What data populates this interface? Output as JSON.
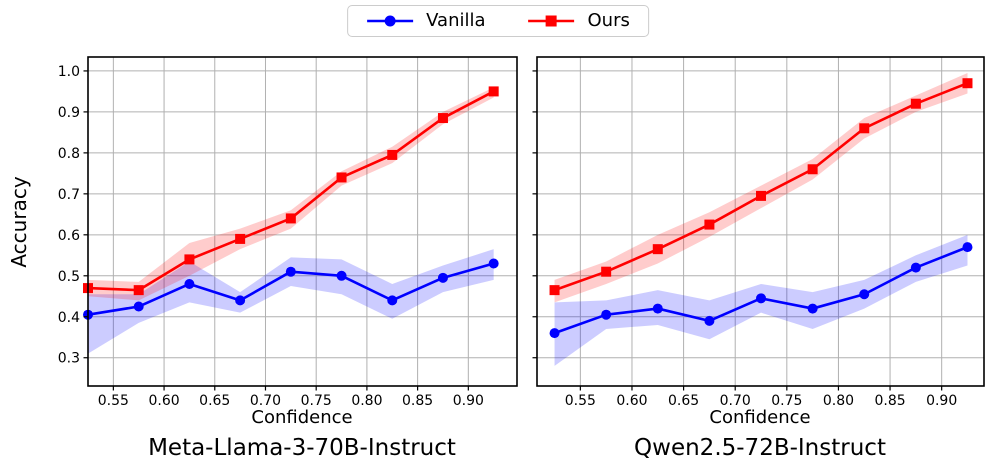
{
  "legend": {
    "items": [
      {
        "label": "Vanilla",
        "color": "#0000ff",
        "marker": "circle"
      },
      {
        "label": "Ours",
        "color": "#ff0000",
        "marker": "square"
      }
    ]
  },
  "colors": {
    "vanilla": "#0000ff",
    "ours": "#ff0000",
    "grid": "#b0b0b0",
    "spine": "#000000",
    "band_opacity": 0.2,
    "background": "#ffffff"
  },
  "chart_data": [
    {
      "type": "line",
      "title": "Meta-Llama-3-70B-Instruct",
      "xlabel": "Confidence",
      "ylabel": "Accuracy",
      "grid": true,
      "legend_position": "top-center",
      "x": [
        0.525,
        0.575,
        0.625,
        0.675,
        0.725,
        0.775,
        0.825,
        0.875,
        0.925
      ],
      "xticks": [
        0.55,
        0.6,
        0.65,
        0.7,
        0.75,
        0.8,
        0.85,
        0.9
      ],
      "xtick_labels": [
        "0.55",
        "0.60",
        "0.65",
        "0.70",
        "0.75",
        "0.80",
        "0.85",
        "0.90"
      ],
      "yticks": [
        0.3,
        0.4,
        0.5,
        0.6,
        0.7,
        0.8,
        0.9,
        1.0
      ],
      "ytick_labels": [
        "0.3",
        "0.4",
        "0.5",
        "0.6",
        "0.7",
        "0.8",
        "0.9",
        "1.0"
      ],
      "xlim": [
        0.525,
        0.948
      ],
      "ylim": [
        0.231,
        1.034
      ],
      "series": [
        {
          "name": "Vanilla",
          "color": "#0000ff",
          "marker": "circle",
          "values": [
            0.405,
            0.425,
            0.48,
            0.44,
            0.51,
            0.5,
            0.44,
            0.495,
            0.53
          ],
          "band_upper": [
            0.455,
            0.455,
            0.535,
            0.46,
            0.545,
            0.54,
            0.48,
            0.525,
            0.565
          ],
          "band_lower": [
            0.31,
            0.385,
            0.435,
            0.41,
            0.475,
            0.455,
            0.395,
            0.46,
            0.49
          ]
        },
        {
          "name": "Ours",
          "color": "#ff0000",
          "marker": "square",
          "values": [
            0.47,
            0.465,
            0.54,
            0.59,
            0.64,
            0.74,
            0.795,
            0.885,
            0.95
          ],
          "band_upper": [
            0.49,
            0.485,
            0.58,
            0.615,
            0.66,
            0.755,
            0.815,
            0.9,
            0.96
          ],
          "band_lower": [
            0.45,
            0.44,
            0.5,
            0.565,
            0.615,
            0.72,
            0.775,
            0.87,
            0.935
          ]
        }
      ]
    },
    {
      "type": "line",
      "title": "Qwen2.5-72B-Instruct",
      "xlabel": "Confidence",
      "ylabel": "",
      "grid": true,
      "legend_position": "top-center",
      "x": [
        0.525,
        0.575,
        0.625,
        0.675,
        0.725,
        0.775,
        0.825,
        0.875,
        0.925
      ],
      "xticks": [
        0.55,
        0.6,
        0.65,
        0.7,
        0.75,
        0.8,
        0.85,
        0.9
      ],
      "xtick_labels": [
        "0.55",
        "0.60",
        "0.65",
        "0.70",
        "0.75",
        "0.80",
        "0.85",
        "0.90"
      ],
      "yticks": [
        0.3,
        0.4,
        0.5,
        0.6,
        0.7,
        0.8,
        0.9,
        1.0
      ],
      "ytick_labels": [
        "0.3",
        "0.4",
        "0.5",
        "0.6",
        "0.7",
        "0.8",
        "0.9",
        "1.0"
      ],
      "xlim": [
        0.508,
        0.941
      ],
      "ylim": [
        0.231,
        1.034
      ],
      "series": [
        {
          "name": "Vanilla",
          "color": "#0000ff",
          "marker": "circle",
          "values": [
            0.36,
            0.405,
            0.42,
            0.39,
            0.445,
            0.42,
            0.455,
            0.52,
            0.57
          ],
          "band_upper": [
            0.435,
            0.44,
            0.465,
            0.44,
            0.48,
            0.46,
            0.49,
            0.55,
            0.6
          ],
          "band_lower": [
            0.28,
            0.37,
            0.38,
            0.345,
            0.41,
            0.37,
            0.42,
            0.485,
            0.525
          ]
        },
        {
          "name": "Ours",
          "color": "#ff0000",
          "marker": "square",
          "values": [
            0.465,
            0.51,
            0.565,
            0.625,
            0.695,
            0.76,
            0.86,
            0.92,
            0.97
          ],
          "band_upper": [
            0.49,
            0.535,
            0.6,
            0.655,
            0.72,
            0.785,
            0.885,
            0.94,
            0.995
          ],
          "band_lower": [
            0.435,
            0.48,
            0.53,
            0.595,
            0.665,
            0.735,
            0.835,
            0.9,
            0.945
          ]
        }
      ]
    }
  ]
}
